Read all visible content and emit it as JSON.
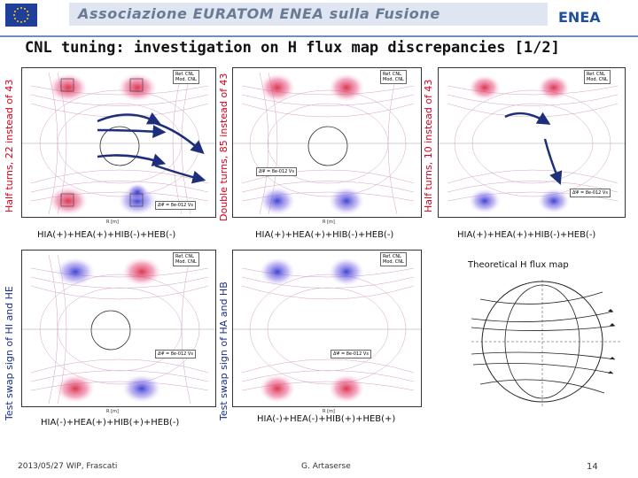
{
  "header": {
    "title": "Associazione EURATOM ENEA sulla Fusione",
    "logo_text": "ENEA"
  },
  "slide": {
    "title": "CNL tuning: investigation on H flux map discrepancies [1/2]"
  },
  "side_labels": {
    "top_left": "Half turns, 22 instead of 43",
    "top_mid": "Double turns, 85 instead of 43",
    "top_right": "Half turns, 10 instead of 43",
    "bottom_left": "Test swap sign of HI and HE",
    "bottom_mid": "Test swap sign of HA and HB"
  },
  "captions": {
    "top_left": "HIA(+)+HEA(+)+HIB(-)+HEB(-)",
    "top_mid": "HIA(+)+HEA(+)+HIB(-)+HEB(-)",
    "top_right": "HIA(+)+HEA(+)+HIB(-)+HEB(-)",
    "bottom_left": "HIA(-)+HEA(+)+HIB(+)+HEB(-)",
    "bottom_mid": "HIA(-)+HEA(-)+HIB(+)+HEB(+)",
    "theoretical": "Theoretical H flux map"
  },
  "plot_text": {
    "legend_ref": "Ref. CNL",
    "legend_mod": "Mod. CNL",
    "dpsi": "ΔΨ = 8e-012 Vs",
    "xlabel": "R [m]"
  },
  "footer": {
    "date_place": "2013/05/27   WIP, Frascati",
    "author": "G. Artaserse",
    "page": "14"
  }
}
